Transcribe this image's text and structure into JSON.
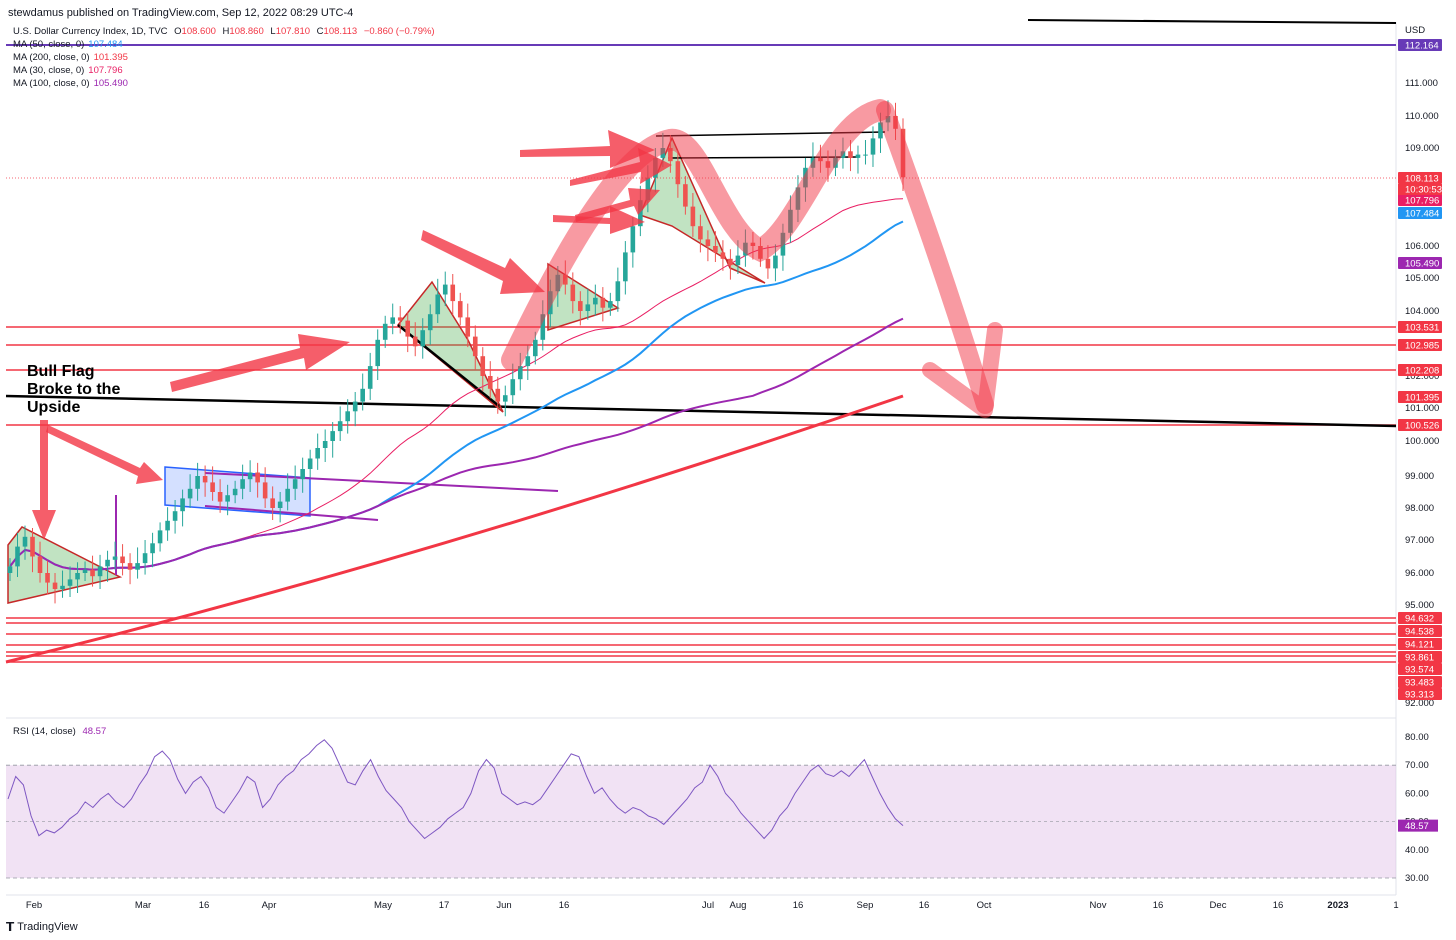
{
  "header": {
    "published": "stewdamus published on TradingView.com, Sep 12, 2022 08:29 UTC-4"
  },
  "symbol": {
    "name": "U.S. Dollar Currency Index, 1D, TVC",
    "O": "108.600",
    "H": "108.860",
    "L": "107.810",
    "C": "108.113",
    "change": "−0.860 (−0.79%)"
  },
  "legend_items": [
    {
      "label": "MA (50, close, 0)",
      "value": "107.484",
      "color": "#2196f3"
    },
    {
      "label": "MA (200, close, 0)",
      "value": "101.395",
      "color": "#f23645"
    },
    {
      "label": "MA (30, close, 0)",
      "value": "107.796",
      "color": "#e91e63"
    },
    {
      "label": "MA (100, close, 0)",
      "value": "105.490",
      "color": "#9c27b0"
    }
  ],
  "annotation": {
    "line1": "Bull Flag",
    "line2": "Broke to the",
    "line3": "Upside"
  },
  "rsi": {
    "label": "RSI (14, close)",
    "value": "48.57"
  },
  "branding": "TradingView",
  "chart_data": {
    "type": "candlestick",
    "currency": "USD",
    "y_ticks": [
      "111.000",
      "110.000",
      "109.000",
      "106.000",
      "105.000",
      "104.000",
      "102.000",
      "101.000",
      "100.000",
      "99.000",
      "98.000",
      "97.000",
      "96.000",
      "95.000",
      "92.000"
    ],
    "ylim": [
      92,
      112.5
    ],
    "x_ticks": [
      "Feb",
      "Mar",
      "16",
      "Apr",
      "May",
      "17",
      "Jun",
      "16",
      "Jul",
      "Aug",
      "16",
      "Sep",
      "16",
      "Oct",
      "Nov",
      "16",
      "Dec",
      "16",
      "2023",
      "1"
    ],
    "last_price": "108.113",
    "countdown": "10:30:53",
    "price_labels": [
      {
        "value": "112.164",
        "color": "#673ab7"
      },
      {
        "value": "108.113",
        "color": "#f23645"
      },
      {
        "value": "107.796",
        "color": "#e91e63"
      },
      {
        "value": "107.484",
        "color": "#2196f3"
      },
      {
        "value": "105.490",
        "color": "#9c27b0"
      },
      {
        "value": "103.531",
        "color": "#f23645"
      },
      {
        "value": "102.985",
        "color": "#f23645"
      },
      {
        "value": "102.208",
        "color": "#f23645"
      },
      {
        "value": "101.395",
        "color": "#f23645"
      },
      {
        "value": "100.526",
        "color": "#f23645"
      },
      {
        "value": "94.632",
        "color": "#f23645"
      },
      {
        "value": "94.538",
        "color": "#f23645"
      },
      {
        "value": "94.121",
        "color": "#f23645"
      },
      {
        "value": "93.861",
        "color": "#f23645"
      },
      {
        "value": "93.574",
        "color": "#f23645"
      },
      {
        "value": "93.483",
        "color": "#f23645"
      },
      {
        "value": "93.313",
        "color": "#f23645"
      }
    ],
    "horizontal_levels": [
      103.531,
      102.985,
      102.208,
      100.526,
      94.632,
      94.538,
      94.121,
      93.861,
      93.574,
      93.483,
      93.313
    ],
    "close_series": [
      96.2,
      96.8,
      97.1,
      96.5,
      96.0,
      95.7,
      95.5,
      95.6,
      95.8,
      96.0,
      96.1,
      95.9,
      96.2,
      96.4,
      96.5,
      96.3,
      96.1,
      96.3,
      96.6,
      96.9,
      97.3,
      97.6,
      97.9,
      98.3,
      98.6,
      99.0,
      98.8,
      98.5,
      98.2,
      98.4,
      98.6,
      98.9,
      99.1,
      98.8,
      98.3,
      98.0,
      98.2,
      98.6,
      98.9,
      99.2,
      99.5,
      99.8,
      100.0,
      100.3,
      100.6,
      100.9,
      101.2,
      101.6,
      102.3,
      103.1,
      103.6,
      103.8,
      103.7,
      103.2,
      102.9,
      103.4,
      103.9,
      104.5,
      104.8,
      104.3,
      103.8,
      103.2,
      102.6,
      102.0,
      101.6,
      101.2,
      101.4,
      101.9,
      102.3,
      102.6,
      103.1,
      103.9,
      104.6,
      105.1,
      104.8,
      104.3,
      104.0,
      104.2,
      104.4,
      104.1,
      104.3,
      104.9,
      105.8,
      106.6,
      107.4,
      108.1,
      108.7,
      109.0,
      108.6,
      107.9,
      107.2,
      106.6,
      106.2,
      106.0,
      105.8,
      105.6,
      105.4,
      105.7,
      106.1,
      106.0,
      105.6,
      105.3,
      105.7,
      106.4,
      107.1,
      107.8,
      108.4,
      108.7,
      108.6,
      108.4,
      108.7,
      108.9,
      108.7,
      108.8,
      108.8,
      109.3,
      109.8,
      110.0,
      109.6,
      108.113
    ],
    "rsi_ticks": [
      "80.00",
      "70.00",
      "60.00",
      "50.00",
      "40.00",
      "30.00"
    ],
    "rsi_band": [
      30,
      70
    ],
    "rsi_series": [
      58,
      66,
      63,
      52,
      45,
      47,
      46,
      48,
      51,
      53,
      57,
      55,
      58,
      60,
      57,
      55,
      58,
      63,
      67,
      73,
      75,
      72,
      65,
      60,
      64,
      66,
      62,
      55,
      53,
      57,
      61,
      66,
      64,
      55,
      58,
      63,
      66,
      68,
      72,
      74,
      77,
      79,
      76,
      70,
      64,
      63,
      68,
      72,
      66,
      61,
      58,
      55,
      50,
      47,
      44,
      46,
      48,
      51,
      53,
      55,
      60,
      68,
      72,
      69,
      60,
      58,
      56,
      57,
      56,
      58,
      62,
      66,
      70,
      74,
      73,
      66,
      60,
      62,
      58,
      55,
      53,
      55,
      54,
      52,
      51,
      49,
      52,
      55,
      58,
      62,
      64,
      70,
      66,
      60,
      57,
      53,
      50,
      47,
      44,
      47,
      52,
      55,
      60,
      64,
      68,
      70,
      67,
      66,
      68,
      66,
      69,
      72,
      66,
      60,
      55,
      51,
      48.57
    ],
    "overlays": [
      {
        "name": "MA 50",
        "color": "#2196f3"
      },
      {
        "name": "MA 200",
        "color": "#f23645"
      },
      {
        "name": "MA 30",
        "color": "#e91e63"
      },
      {
        "name": "MA 100",
        "color": "#9c27b0"
      }
    ]
  }
}
